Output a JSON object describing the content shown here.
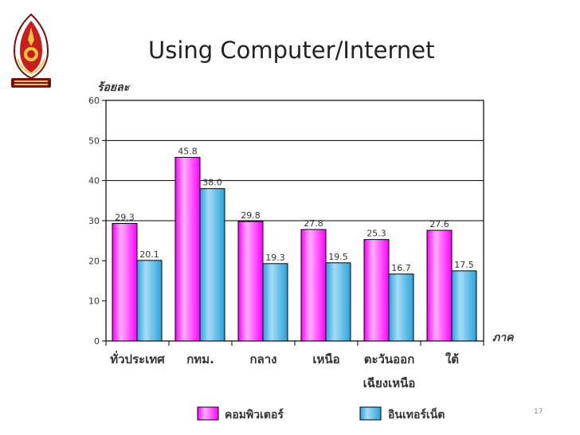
{
  "slide": {
    "title": "Using Computer/Internet",
    "page_number": "17"
  },
  "logo": {
    "icon": "university-emblem-icon"
  },
  "colors": {
    "computer": "#ff00ff",
    "computer_light": "#ffb0ff",
    "internet": "#29a3dc",
    "internet_light": "#a6dcf5",
    "frame": "#000000"
  },
  "chart_data": {
    "type": "bar",
    "ylabel": "ร้อยละ",
    "xlabel": "ภาค",
    "ylim": [
      0,
      60
    ],
    "yticks": [
      0,
      10,
      20,
      30,
      40,
      50,
      60
    ],
    "categories": [
      [
        "ทั่วประเทศ"
      ],
      [
        "กทม."
      ],
      [
        "กลาง"
      ],
      [
        "เหนือ"
      ],
      [
        "ตะวันออก",
        "เฉียงเหนือ"
      ],
      [
        "ใต้"
      ]
    ],
    "series": [
      {
        "name": "คอมพิวเตอร์",
        "values": [
          29.3,
          45.8,
          29.8,
          27.8,
          25.3,
          27.6
        ]
      },
      {
        "name": "อินเทอร์เน็ต",
        "values": [
          20.1,
          38.0,
          19.3,
          19.5,
          16.7,
          17.5
        ]
      }
    ],
    "data_labels": [
      [
        "29.3",
        "45.8",
        "29.8",
        "27.8",
        "25.3",
        "27.6"
      ],
      [
        "20.1",
        "38.0",
        "19.3",
        "19.5",
        "16.7",
        "17.5"
      ]
    ],
    "gridlines": [
      30,
      40,
      50
    ],
    "legend": "bottom"
  }
}
